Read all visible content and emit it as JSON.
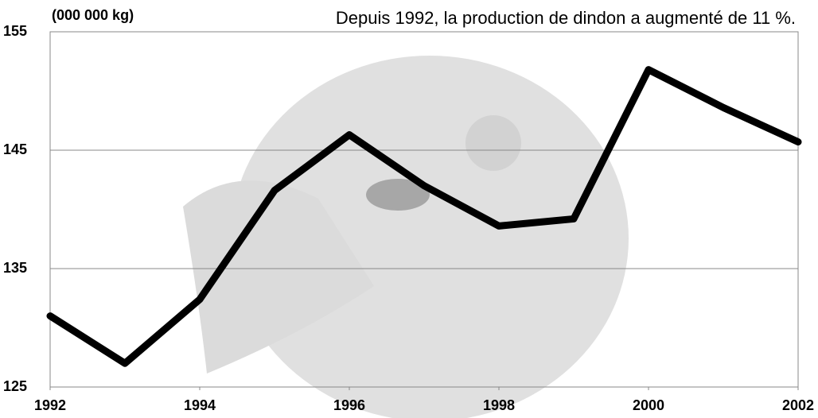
{
  "chart_data": {
    "type": "line",
    "title": "Depuis 1992, la production de dindon a augmenté de 11 %.",
    "y_label": "(000 000 kg)",
    "x": [
      1992,
      1993,
      1994,
      1995,
      1996,
      1997,
      1998,
      1999,
      2000,
      2001,
      2002
    ],
    "values": [
      131.0,
      127.0,
      132.4,
      141.6,
      146.3,
      142.0,
      138.6,
      139.2,
      151.8,
      148.6,
      145.7
    ],
    "color": "#000000",
    "xlim": [
      1992,
      2002
    ],
    "xticks": [
      1992,
      1994,
      1996,
      1998,
      2000,
      2002
    ],
    "ylim": [
      125,
      155
    ],
    "yticks": [
      125,
      135,
      145,
      155
    ],
    "grid": true
  }
}
